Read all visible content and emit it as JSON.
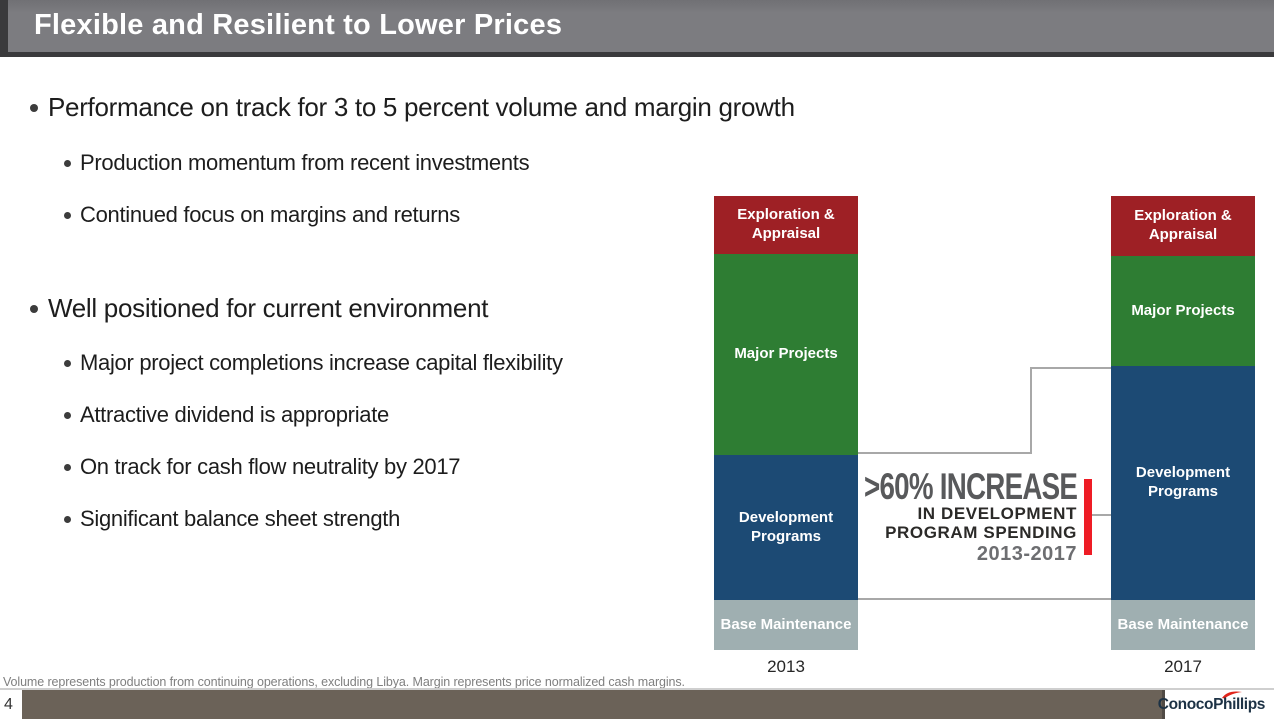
{
  "slide": {
    "title": "Flexible and Resilient to Lower Prices",
    "bullets": [
      {
        "label": "Performance on track for 3 to 5 percent volume and margin growth",
        "sub": [
          "Production momentum from recent investments",
          "Continued focus on margins and returns"
        ]
      },
      {
        "label": "Well positioned for current environment",
        "sub": [
          "Major project completions increase capital flexibility",
          "Attractive dividend is appropriate",
          "On track for cash flow neutrality by 2017",
          "Significant balance sheet strength"
        ]
      }
    ],
    "footnote": "Volume represents production from continuing operations, excluding Libya. Margin represents price normalized cash margins.",
    "page_number": "4",
    "logo_text": "ConocoPhillips"
  },
  "chart_data": {
    "type": "bar",
    "stacked": true,
    "title": "",
    "xlabel": "",
    "ylabel": "",
    "categories": [
      "2013",
      "2017"
    ],
    "series": [
      {
        "name": "Exploration & Appraisal",
        "values": [
          58,
          60
        ],
        "color": "#9e2025"
      },
      {
        "name": "Major Projects",
        "values": [
          201,
          110
        ],
        "color": "#2e7d33"
      },
      {
        "name": "Development Programs",
        "values": [
          145,
          234
        ],
        "color": "#1c4a74"
      },
      {
        "name": "Base Maintenance",
        "values": [
          50,
          50
        ],
        "color": "#9fafb1"
      }
    ],
    "value_note": "relative capital spending, unitless segment heights; development programs grow 145 to 234 (>60%)",
    "legend_position": "labels inside segments",
    "grid": false,
    "annotation": {
      "headline": ">60% INCREASE",
      "sub1": "IN DEVELOPMENT",
      "sub2": "PROGRAM SPENDING",
      "period": "2013-2017"
    }
  },
  "colors": {
    "title_bar": "#7c7c80",
    "title_bar_shadow": "#3a3a3c",
    "accent_red": "#ee1c25",
    "connector_gray": "#a8a8a8",
    "footer_bar": "#6b6258",
    "logo_navy": "#1d3245",
    "logo_red": "#e1251b"
  }
}
